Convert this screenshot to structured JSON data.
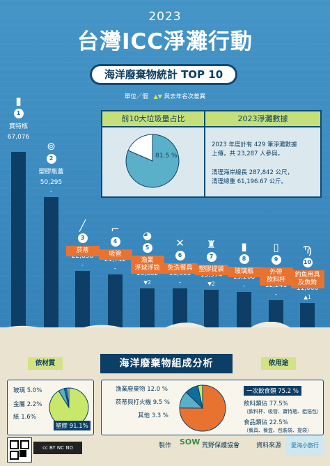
{
  "header": {
    "year": "2023",
    "title": "台灣ICC淨灘行動"
  },
  "top10": {
    "pill_label": "海洋廢棄物統計 TOP 10",
    "unit_label": "單位／個",
    "change_label": "與去年名次差異",
    "items": [
      {
        "rank": "1",
        "name": "寶特瓶",
        "value": "67,076",
        "change": "",
        "icon": "bottle-icon"
      },
      {
        "rank": "2",
        "name": "塑膠瓶蓋",
        "value": "50,295",
        "change": "–",
        "icon": "bottle-cap-icon"
      },
      {
        "rank": "3",
        "name": "菸蒂",
        "value": "22,858",
        "change": "–",
        "icon": "cigarette-icon"
      },
      {
        "rank": "4",
        "name": "吸管",
        "value": "21,742",
        "change": "–",
        "icon": "straw-icon"
      },
      {
        "rank": "5",
        "name": "漁業\n浮球浮筒",
        "value": "16,582",
        "change": "▼2",
        "icon": "float-icon"
      },
      {
        "rank": "6",
        "name": "免洗餐具",
        "value": "16,561",
        "change": "–",
        "icon": "cutlery-icon"
      },
      {
        "rank": "7",
        "name": "塑膠提袋",
        "value": "15,974",
        "change": "▼2",
        "icon": "plastic-bag-icon"
      },
      {
        "rank": "8",
        "name": "玻璃瓶",
        "value": "15,268",
        "change": "–",
        "icon": "glass-bottle-icon"
      },
      {
        "rank": "9",
        "name": "外帶\n飲料杯",
        "value": "12,241",
        "change": "–",
        "icon": "cup-icon"
      },
      {
        "rank": "10",
        "name": "釣魚用具\n及魚鉤",
        "value": "11,066",
        "change": "▲1",
        "icon": "fishhook-icon"
      }
    ]
  },
  "chart_data": {
    "type": "bar",
    "categories": [
      "寶特瓶",
      "塑膠瓶蓋",
      "菸蒂",
      "吸管",
      "漁業浮球浮筒",
      "免洗餐具",
      "塑膠提袋",
      "玻璃瓶",
      "外帶飲料杯",
      "釣魚用具及魚鉤"
    ],
    "values": [
      67076,
      50295,
      22858,
      21742,
      16582,
      16561,
      15974,
      15268,
      12241,
      11066
    ],
    "title": "海洋廢棄物統計 TOP 10",
    "ylabel": "單位／個",
    "ylim": [
      0,
      67076
    ]
  },
  "panel": {
    "left_title": "前10大垃圾量占比",
    "right_title": "2023淨灘數據",
    "pie_percent": "81.5 %",
    "pie_fraction": 0.815,
    "line1": "2023 年度計有 429 筆淨灘數據",
    "line2": "上傳，共 23,287 人參與。",
    "line3": "清理海岸線長 287,842 公尺，",
    "line4": "清理總重 61,196.67 公斤。"
  },
  "composition": {
    "title": "海洋廢棄物組成分析",
    "by_material_label": "依材質",
    "by_use_label": "依用途",
    "material": [
      {
        "name": "玻璃 5.0%",
        "value": 5.0
      },
      {
        "name": "金屬 2.2%",
        "value": 2.2
      },
      {
        "name": "紙 1.6%",
        "value": 1.6
      },
      {
        "name": "塑膠 91.1%",
        "value": 91.1
      }
    ],
    "use_left": [
      {
        "name": "漁業廢棄物 12.0 %",
        "value": 12.0
      },
      {
        "name": "菸蒂與打火機 9.5 %",
        "value": 9.5
      },
      {
        "name": "其他 3.3 %",
        "value": 3.3
      }
    ],
    "use_main": {
      "name": "一次飲食類 75.2 %",
      "value": 75.2
    },
    "use_sub1": "飲料類佔 77.5%",
    "use_sub1_detail": "（飲料杯、吸管、寶特瓶、鋁箔包）",
    "use_sub2": "食品類佔 22.5%",
    "use_sub2_detail": "（餐具、餐盒、包裝袋、提袋）"
  },
  "footer": {
    "made_by_label": "製作",
    "org": "荒野保護協會",
    "source_label": "資料來源",
    "source_org": "愛海小旅行"
  },
  "colors": {
    "sea": "#3d8fc3",
    "bar": "#0d3f66",
    "accent": "#e87331",
    "green": "#c9e76a",
    "sand": "#eae3d0"
  }
}
